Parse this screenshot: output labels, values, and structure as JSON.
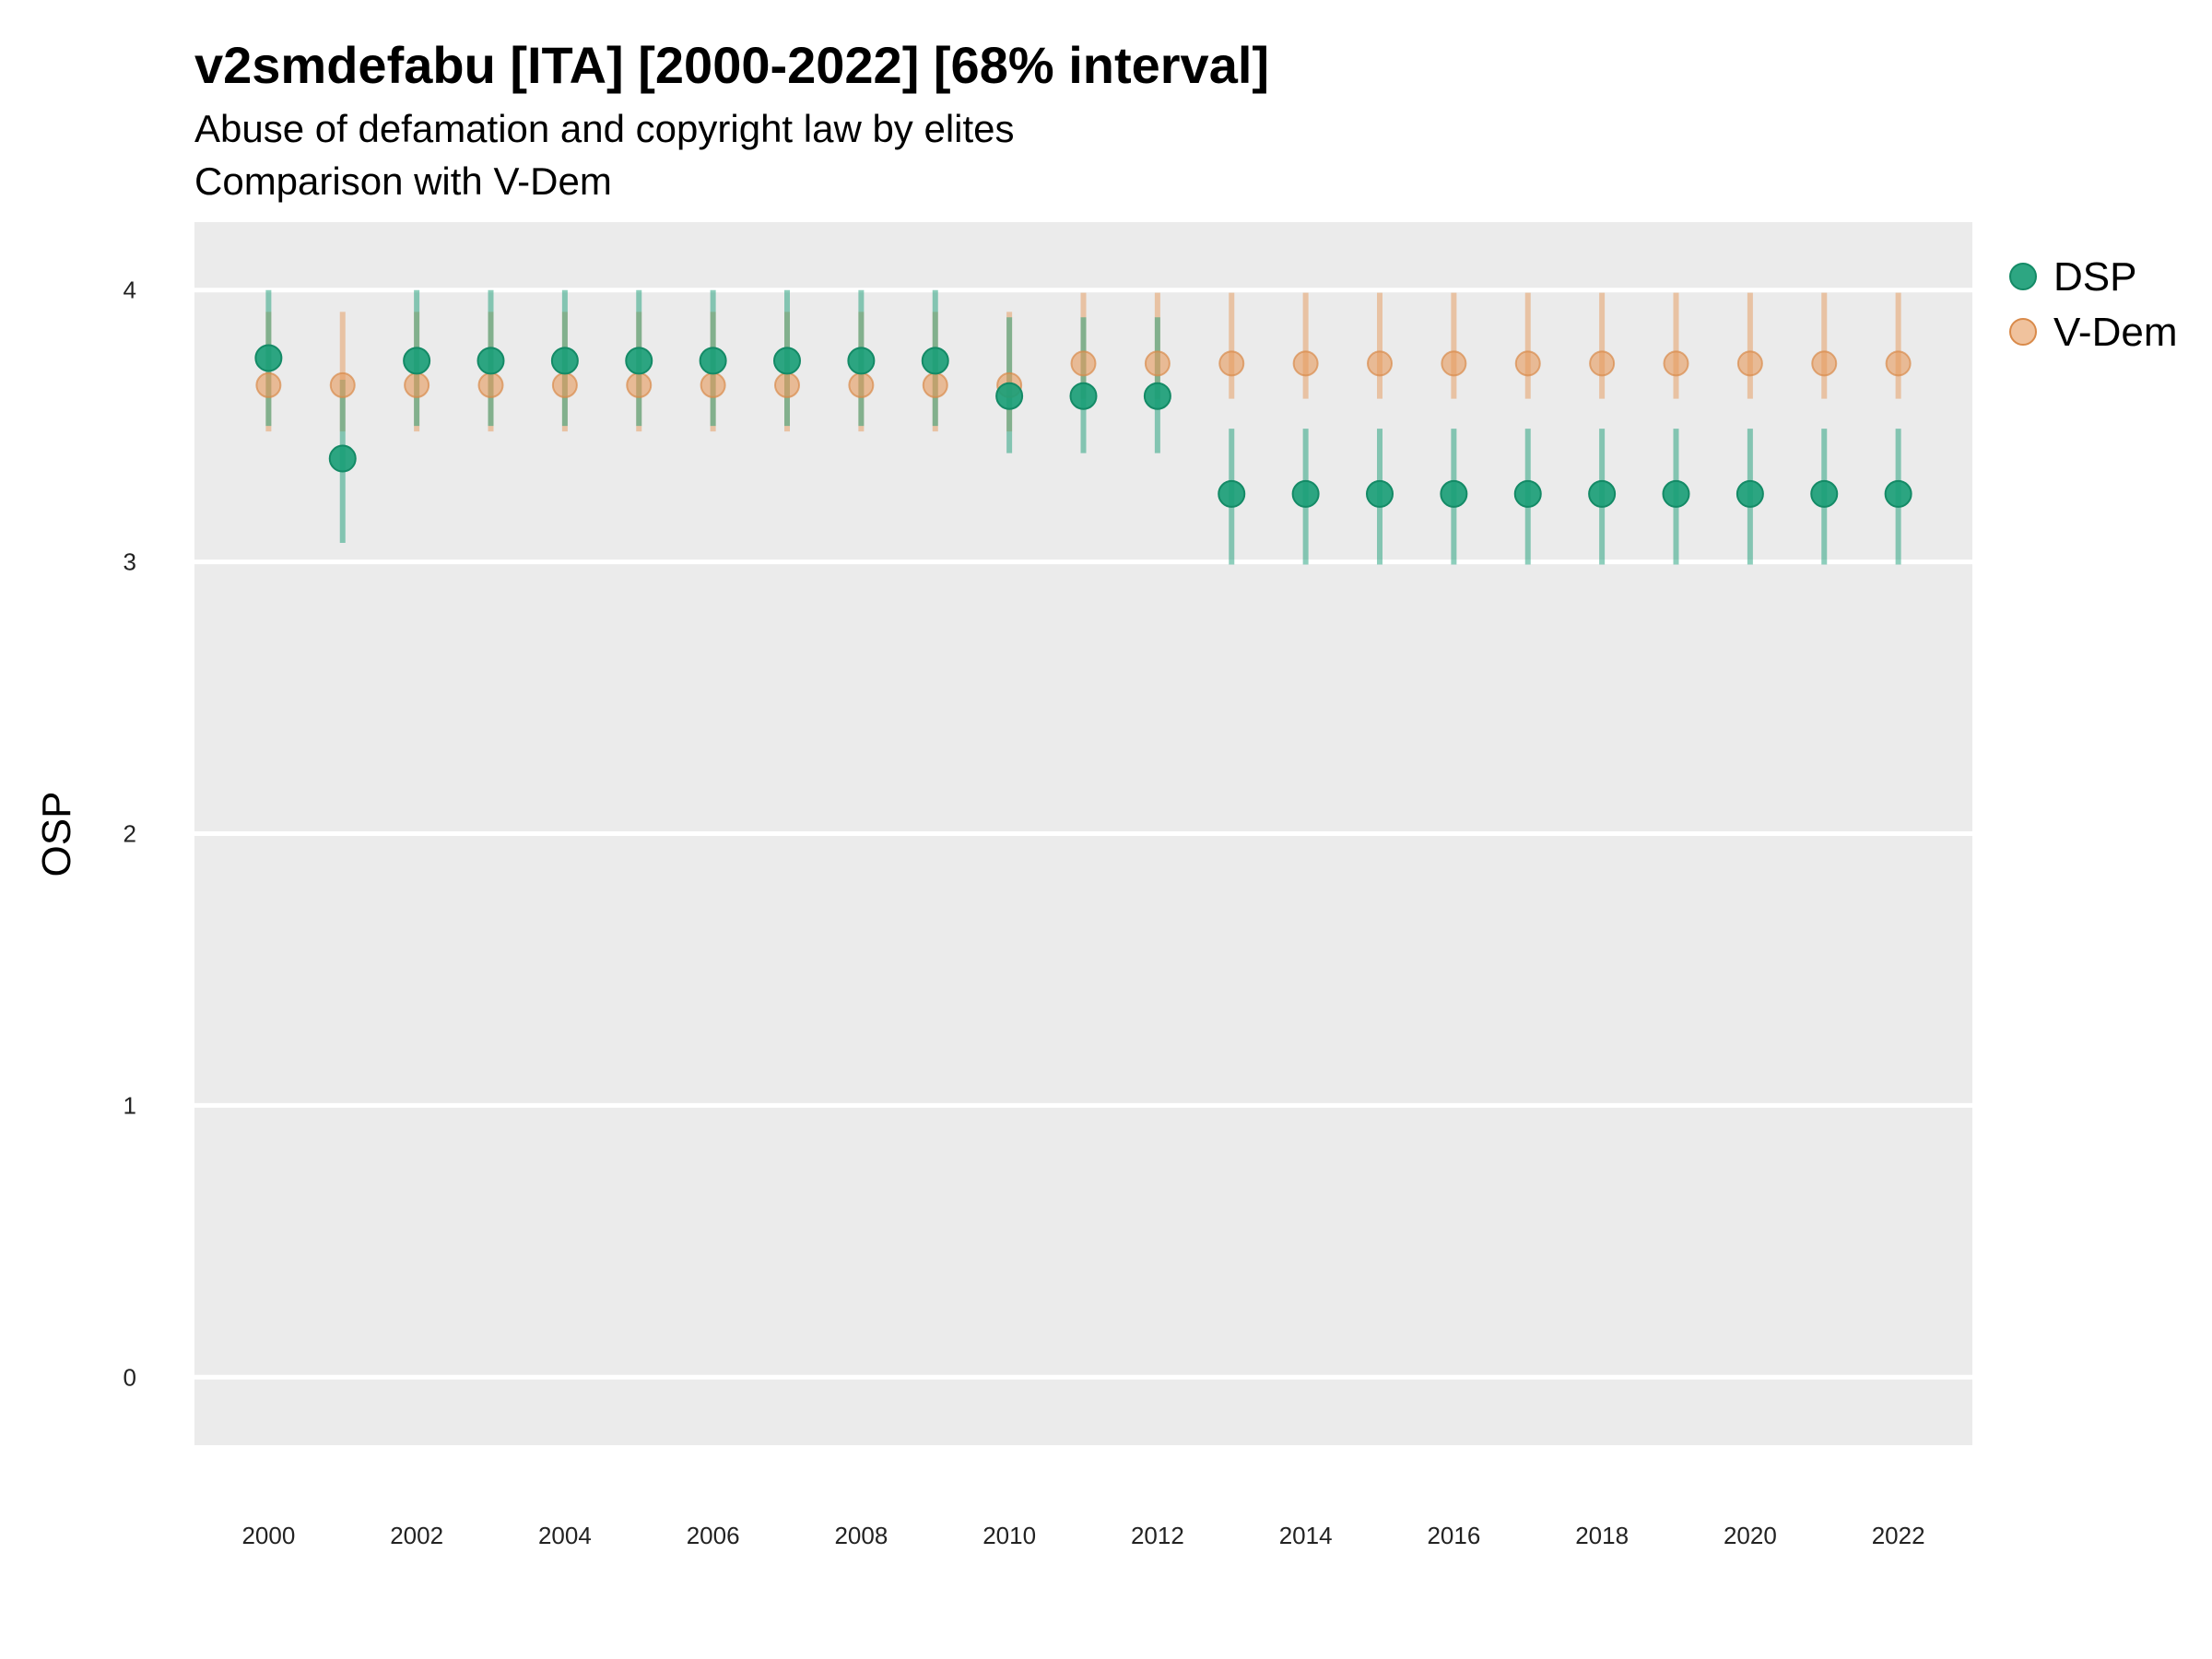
{
  "chart_data": {
    "type": "scatter",
    "title": "v2smdefabu [ITA] [2000-2022] [68% interval]",
    "subtitle": "Abuse of defamation and copyright law by elites",
    "subtitle2": "Comparison with V-Dem",
    "ylabel": "OSP",
    "xlabel": "",
    "ylim": [
      -0.25,
      4.25
    ],
    "xlim": [
      1999,
      2023
    ],
    "yticks": [
      0,
      1,
      2,
      3,
      4
    ],
    "xticks": [
      2000,
      2002,
      2004,
      2006,
      2008,
      2010,
      2012,
      2014,
      2016,
      2018,
      2020,
      2022
    ],
    "grid": true,
    "legend_position": "top-right",
    "x": [
      2000,
      2001,
      2002,
      2003,
      2004,
      2005,
      2006,
      2007,
      2008,
      2009,
      2010,
      2011,
      2012,
      2013,
      2014,
      2015,
      2016,
      2017,
      2018,
      2019,
      2020,
      2021,
      2022
    ],
    "series": [
      {
        "name": "V-Dem",
        "color": "#e69a5c",
        "values": [
          3.65,
          3.65,
          3.65,
          3.65,
          3.65,
          3.65,
          3.65,
          3.65,
          3.65,
          3.65,
          3.65,
          3.73,
          3.73,
          3.73,
          3.73,
          3.73,
          3.73,
          3.73,
          3.73,
          3.73,
          3.73,
          3.73,
          3.73
        ],
        "lower": [
          3.48,
          3.48,
          3.48,
          3.48,
          3.48,
          3.48,
          3.48,
          3.48,
          3.48,
          3.48,
          3.48,
          3.6,
          3.6,
          3.6,
          3.6,
          3.6,
          3.6,
          3.6,
          3.6,
          3.6,
          3.6,
          3.6,
          3.6
        ],
        "upper": [
          3.92,
          3.92,
          3.92,
          3.92,
          3.92,
          3.92,
          3.92,
          3.92,
          3.92,
          3.92,
          3.92,
          3.99,
          3.99,
          3.99,
          3.99,
          3.99,
          3.99,
          3.99,
          3.99,
          3.99,
          3.99,
          3.99,
          3.99
        ]
      },
      {
        "name": "DSP",
        "color": "#1b9e77",
        "values": [
          3.75,
          3.38,
          3.74,
          3.74,
          3.74,
          3.74,
          3.74,
          3.74,
          3.74,
          3.74,
          3.61,
          3.61,
          3.61,
          3.25,
          3.25,
          3.25,
          3.25,
          3.25,
          3.25,
          3.25,
          3.25,
          3.25,
          3.25
        ],
        "lower": [
          3.5,
          3.07,
          3.5,
          3.5,
          3.5,
          3.5,
          3.5,
          3.5,
          3.5,
          3.5,
          3.4,
          3.4,
          3.4,
          2.99,
          2.99,
          2.99,
          2.99,
          2.99,
          2.99,
          2.99,
          2.99,
          2.99,
          2.99
        ],
        "upper": [
          4.0,
          3.67,
          4.0,
          4.0,
          4.0,
          4.0,
          4.0,
          4.0,
          4.0,
          4.0,
          3.9,
          3.9,
          3.9,
          3.49,
          3.49,
          3.49,
          3.49,
          3.49,
          3.49,
          3.49,
          3.49,
          3.49,
          3.49
        ]
      }
    ]
  }
}
